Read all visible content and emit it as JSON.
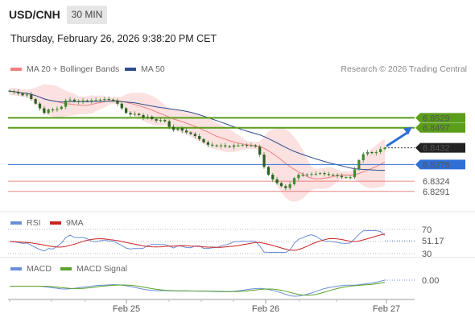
{
  "header": {
    "symbol": "USD/CNH",
    "timeframe": "30 MIN",
    "timestamp": "Thursday, February 26, 2026 9:38:20 PM CET"
  },
  "main_legend": {
    "ma20": "MA 20 + Bollinger Bands",
    "ma50": "MA 50",
    "credit": "Research © 2026 Trading Central"
  },
  "rsi_legend": {
    "rsi": "RSI",
    "ma": "9MA"
  },
  "macd_legend": {
    "macd": "MACD",
    "signal": "MACD Signal"
  },
  "colors": {
    "ma20": "#f08080",
    "ma50": "#2f4f8f",
    "band_fill": "#fbdcdc",
    "resistance": "#5a9e1a",
    "pivot": "#2f6fd6",
    "support": "#e05555",
    "candle": "#3d8b2f",
    "rsi": "#6a8fd8",
    "rsi_ma": "#cc2222",
    "macd": "#6a8fd8",
    "macd_signal": "#5aa02c"
  },
  "chart_data": [
    {
      "type": "candlestick",
      "title": "USD/CNH",
      "x_ticks": [
        "Feb 25",
        "Feb 26",
        "Feb 27"
      ],
      "ylim": [
        6.822,
        6.865
      ],
      "price_labels": [
        {
          "value": 6.8529,
          "text": "6.8529",
          "kind": "resistance"
        },
        {
          "value": 6.8497,
          "text": "6.8497",
          "kind": "resistance"
        },
        {
          "value": 6.8432,
          "text": "6.8432",
          "kind": "current"
        },
        {
          "value": 6.8378,
          "text": "6.8378",
          "kind": "pivot"
        },
        {
          "value": 6.8324,
          "text": "6.8324",
          "kind": "support"
        },
        {
          "value": 6.8291,
          "text": "6.8291",
          "kind": "support"
        }
      ],
      "close": [
        6.8615,
        6.8613,
        6.8608,
        6.8602,
        6.8605,
        6.859,
        6.8575,
        6.856,
        6.8545,
        6.8556,
        6.8555,
        6.8558,
        6.8565,
        6.8585,
        6.8588,
        6.8583,
        6.858,
        6.8585,
        6.8583,
        6.8586,
        6.8587,
        6.8588,
        6.859,
        6.8588,
        6.8585,
        6.8575,
        6.856,
        6.8545,
        6.854,
        6.8542,
        6.8538,
        6.853,
        6.8533,
        6.8525,
        6.852,
        6.8522,
        6.8518,
        6.85,
        6.849,
        6.8496,
        6.8488,
        6.8482,
        6.8477,
        6.847,
        6.846,
        6.845,
        6.8442,
        6.844,
        6.8438,
        6.844,
        6.8437,
        6.8435,
        6.844,
        6.844,
        6.8441,
        6.844,
        6.844,
        6.8436,
        6.841,
        6.837,
        6.8345,
        6.833,
        6.8318,
        6.8308,
        6.8302,
        6.8314,
        6.8334,
        6.8345,
        6.8343,
        6.8346,
        6.8347,
        6.8348,
        6.835,
        6.8347,
        6.8345,
        6.8344,
        6.8341,
        6.8337,
        6.8337,
        6.8337,
        6.8362,
        6.8392,
        6.8412,
        6.8418,
        6.8415,
        6.8418,
        6.8428,
        6.8432
      ],
      "rsi": {
        "last": 51.17,
        "levels": [
          70,
          50,
          30
        ]
      },
      "macd": {
        "last": 0.0
      }
    }
  ]
}
